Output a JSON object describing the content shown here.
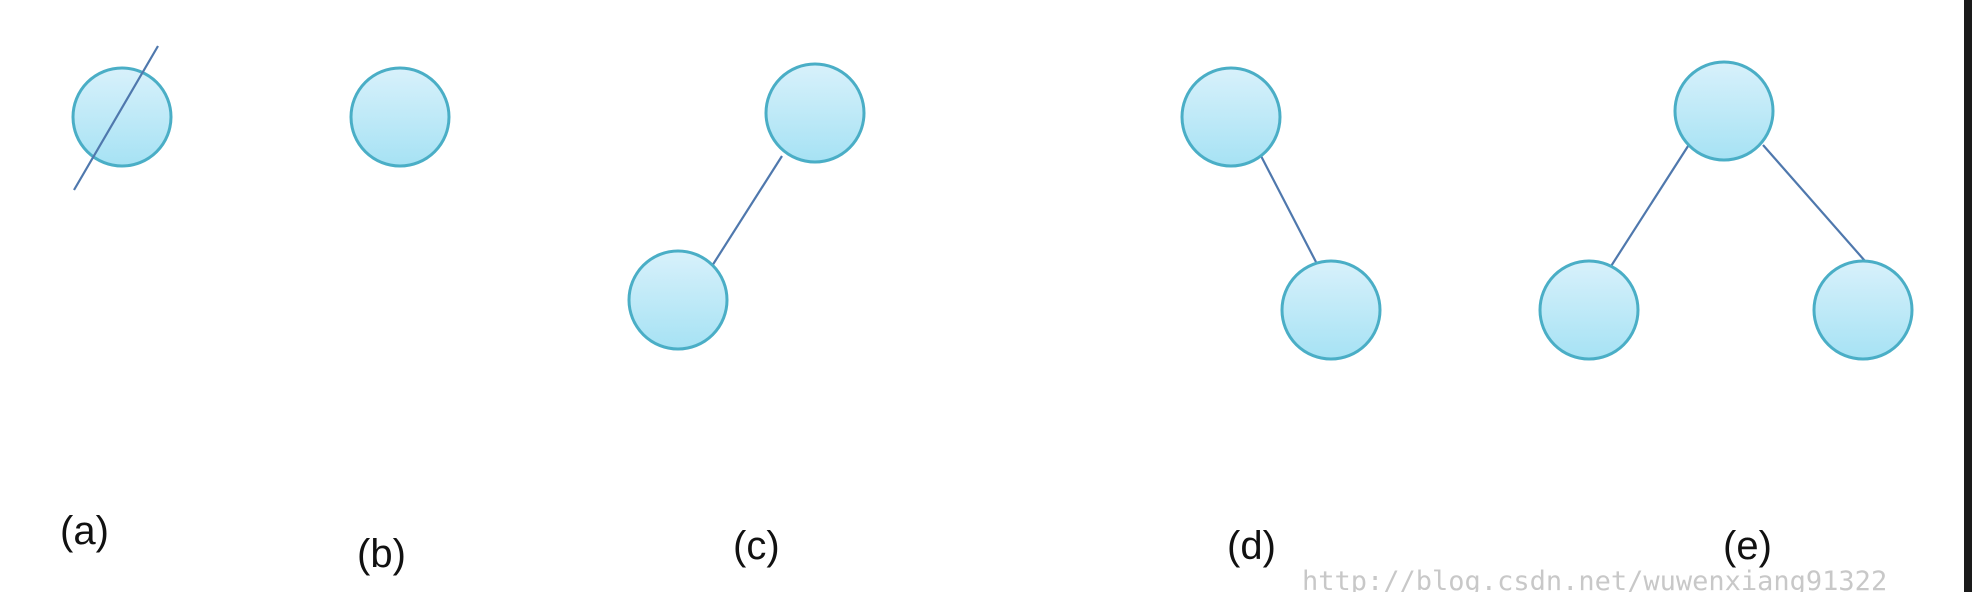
{
  "diagram": {
    "panels": [
      {
        "label": "(a)",
        "nodes": 1,
        "edges": 0,
        "crossed_out": true
      },
      {
        "label": "(b)",
        "nodes": 1,
        "edges": 0,
        "crossed_out": false
      },
      {
        "label": "(c)",
        "nodes": 2,
        "edges": 1,
        "crossed_out": false
      },
      {
        "label": "(d)",
        "nodes": 2,
        "edges": 1,
        "crossed_out": false
      },
      {
        "label": "(e)",
        "nodes": 3,
        "edges": 2,
        "crossed_out": false
      }
    ],
    "watermark": "http://blog.csdn.net/wuwenxiang91322",
    "colors": {
      "node_fill_top": "#d8f1fb",
      "node_fill_bottom": "#a6e2f4",
      "node_stroke": "#4aaec6",
      "edge": "#4f78ad",
      "text": "#111111",
      "watermark": "#c8c8c8"
    }
  }
}
